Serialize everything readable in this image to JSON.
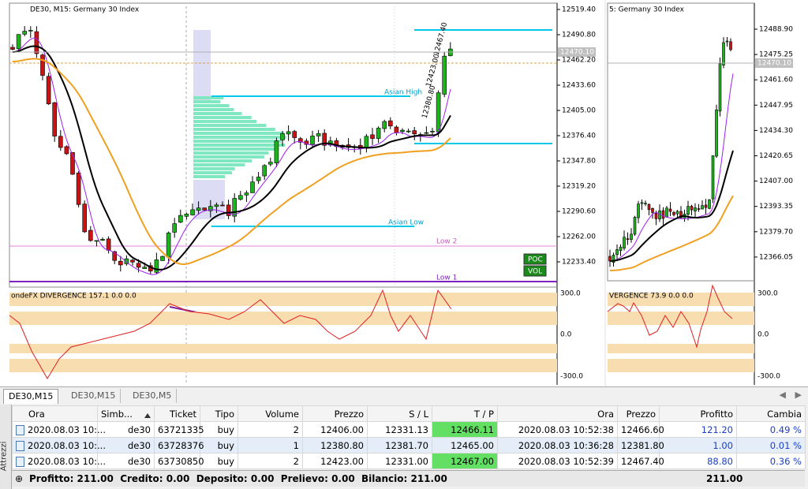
{
  "charts": [
    {
      "title": "DE30, M15:  Germany 30 Index",
      "price_ticks": [
        "12519.40",
        "12490.80",
        "12462.20",
        "12433.60",
        "12405.00",
        "12376.40",
        "12347.80",
        "12319.20",
        "12290.60",
        "12262.00",
        "12233.40"
      ],
      "current_price": "12470.10",
      "labels": {
        "asian_high": "Asian High",
        "asian_low": "Asian Low",
        "low2": "Low 2",
        "low1": "Low 1"
      },
      "trade_labels": [
        "12467.40",
        "12423.00",
        "12380.80"
      ],
      "buttons": [
        "POC",
        "VOL"
      ],
      "indicator": {
        "title": "ondeFX DIVERGENCE 157.1 0.0 0.0",
        "ticks": [
          "300.0",
          "0.0",
          "-300.0"
        ]
      }
    },
    {
      "title": "5:  Germany 30 Index",
      "price_ticks": [
        "12488.90",
        "12475.25",
        "12461.60",
        "12447.95",
        "12434.30",
        "12420.65",
        "12407.00",
        "12393.35",
        "12379.70",
        "12366.05"
      ],
      "current_price": "12470.10",
      "indicator": {
        "title": "VERGENCE 73.9 0.0 0.0",
        "ticks": [
          "300.0",
          "0.0",
          "-300.0"
        ]
      }
    }
  ],
  "tabs": [
    "DE30,M15",
    "DE30,M15",
    "DE30,M5"
  ],
  "side_label": "Attrezzi",
  "table": {
    "headers": [
      "Ora",
      "Simb...",
      "Ticket",
      "Tipo",
      "Volume",
      "Prezzo",
      "S / L",
      "T / P",
      "Ora",
      "Prezzo",
      "Profitto",
      "Cambia"
    ],
    "rows": [
      [
        "2020.08.03 10:...",
        "de30",
        "63721335",
        "buy",
        "2",
        "12406.00",
        "12331.13",
        "12466.11",
        "2020.08.03 10:52:38",
        "12466.60",
        "121.20",
        "0.49 %"
      ],
      [
        "2020.08.03 10:...",
        "de30",
        "63728376",
        "buy",
        "1",
        "12380.80",
        "12381.70",
        "12465.00",
        "2020.08.03 10:36:28",
        "12381.80",
        "1.00",
        "0.01 %"
      ],
      [
        "2020.08.03 10:...",
        "de30",
        "63730850",
        "buy",
        "2",
        "12423.00",
        "12331.00",
        "12467.00",
        "2020.08.03 10:52:39",
        "12467.40",
        "88.80",
        "0.36 %"
      ]
    ]
  },
  "footer": {
    "summary": "Profitto: 211.00  Credito: 0.00  Deposito: 0.00  Prelievo: 0.00  Bilancio: 211.00",
    "total": "211.00"
  }
}
